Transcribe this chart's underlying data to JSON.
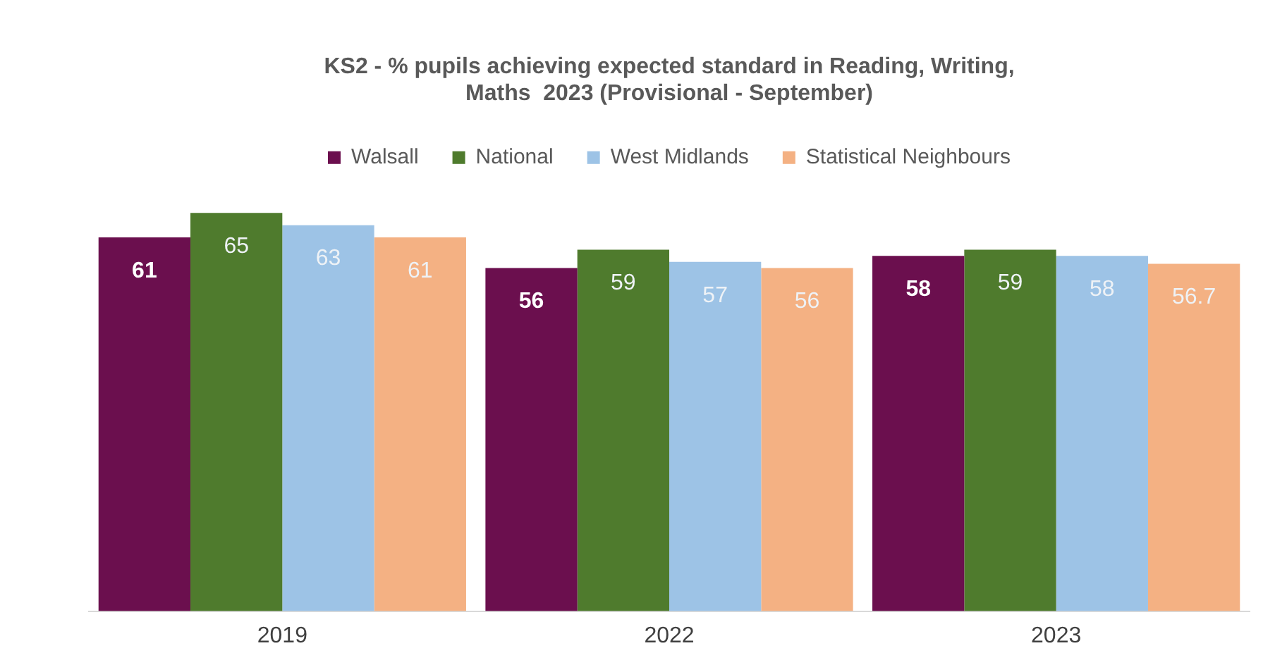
{
  "chart_data": {
    "type": "bar",
    "title": "KS2 - % pupils achieving expected standard in Reading, Writing, Maths  2023 (Provisional - September)",
    "categories": [
      "2019",
      "2022",
      "2023"
    ],
    "series": [
      {
        "name": "Walsall",
        "color": "#6b0f4e",
        "values": [
          61,
          56,
          58
        ]
      },
      {
        "name": "National",
        "color": "#4f7b2d",
        "values": [
          65,
          59,
          59
        ]
      },
      {
        "name": "West Midlands",
        "color": "#9dc3e6",
        "values": [
          63,
          57,
          58
        ]
      },
      {
        "name": "Statistical Neighbours",
        "color": "#f4b183",
        "values": [
          61,
          56,
          56.7
        ]
      }
    ],
    "tick_labels": "x",
    "grid": false,
    "legend": "top",
    "data_labels": true
  }
}
